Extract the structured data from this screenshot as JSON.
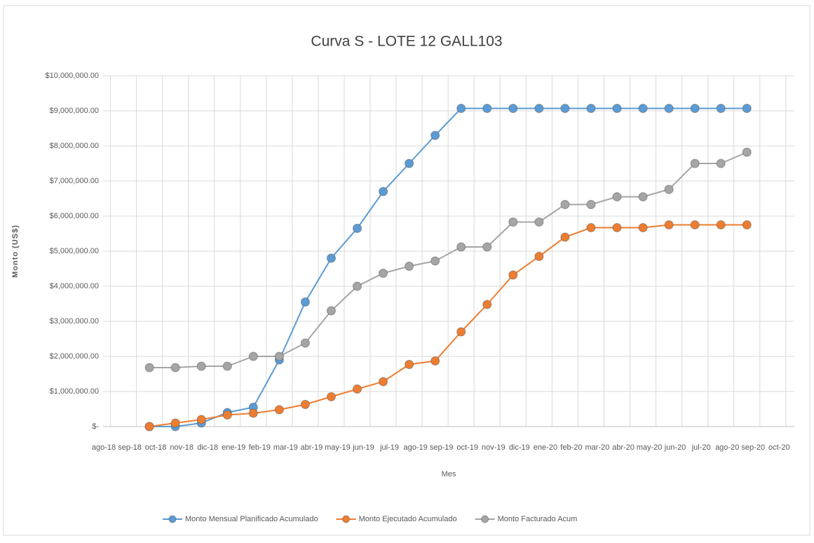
{
  "chart_data": {
    "type": "line",
    "title": "Curva S - LOTE 12 GALL103",
    "y_label": "Monto (US$)",
    "x_label": "Mes",
    "categories": [
      "ago-18",
      "sep-18",
      "oct-18",
      "nov-18",
      "dic-18",
      "ene-19",
      "feb-19",
      "mar-19",
      "abr-19",
      "may-19",
      "jun-19",
      "jul-19",
      "ago-19",
      "sep-19",
      "oct-19",
      "nov-19",
      "dic-19",
      "ene-20",
      "feb-20",
      "mar-20",
      "abr-20",
      "may-20",
      "jun-20",
      "jul-20",
      "ago-20",
      "sep-20",
      "oct-20"
    ],
    "series": [
      {
        "name": "Monto Mensual Planificado Acumulado",
        "color": "#5b9bd5",
        "values": [
          null,
          null,
          0,
          0,
          100000,
          400000,
          550000,
          1900000,
          3550000,
          4800000,
          5650000,
          6700000,
          7500000,
          8300000,
          9070000,
          9070000,
          9070000,
          9070000,
          9070000,
          9070000,
          9070000,
          9070000,
          9070000,
          9070000,
          9070000,
          9070000,
          null
        ]
      },
      {
        "name": "Monto Ejecutado Acumulado",
        "color": "#ed7d31",
        "values": [
          null,
          null,
          0,
          100000,
          200000,
          330000,
          380000,
          480000,
          630000,
          850000,
          1070000,
          1280000,
          1770000,
          1870000,
          2700000,
          3480000,
          4320000,
          4850000,
          5400000,
          5670000,
          5670000,
          5670000,
          5750000,
          5750000,
          5750000,
          5750000,
          null
        ]
      },
      {
        "name": "Monto Facturado Acum",
        "color": "#a5a5a5",
        "values": [
          null,
          null,
          1680000,
          1680000,
          1720000,
          1720000,
          2000000,
          2000000,
          2380000,
          3300000,
          4000000,
          4370000,
          4570000,
          4720000,
          5120000,
          5120000,
          5830000,
          5830000,
          6330000,
          6330000,
          6550000,
          6550000,
          6760000,
          7500000,
          7500000,
          7820000,
          null
        ]
      }
    ],
    "ylim": [
      0,
      10000000
    ],
    "yticks": [
      {
        "value": 0,
        "label": "$-"
      },
      {
        "value": 1000000,
        "label": "$1,000,000.00"
      },
      {
        "value": 2000000,
        "label": "$2,000,000.00"
      },
      {
        "value": 3000000,
        "label": "$3,000,000.00"
      },
      {
        "value": 4000000,
        "label": "$4,000,000.00"
      },
      {
        "value": 5000000,
        "label": "$5,000,000.00"
      },
      {
        "value": 6000000,
        "label": "$6,000,000.00"
      },
      {
        "value": 7000000,
        "label": "$7,000,000.00"
      },
      {
        "value": 8000000,
        "label": "$8,000,000.00"
      },
      {
        "value": 9000000,
        "label": "$9,000,000.00"
      },
      {
        "value": 10000000,
        "label": "$10,000,000.00"
      }
    ],
    "grid": true,
    "legend": "bottom"
  }
}
